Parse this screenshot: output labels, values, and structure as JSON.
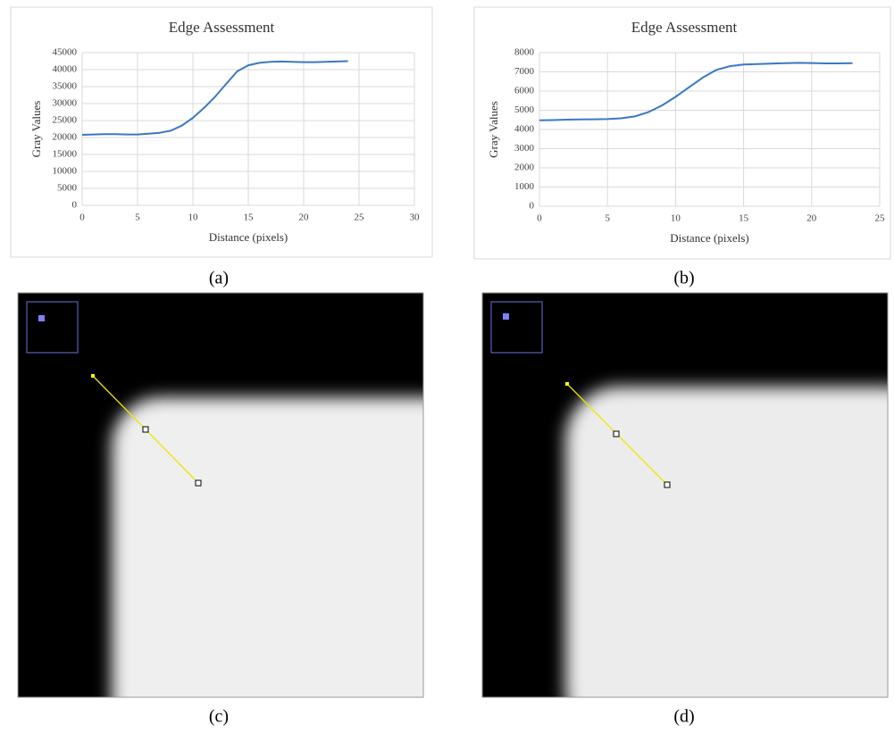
{
  "chart_data": [
    {
      "type": "line",
      "title": "Edge Assessment",
      "xlabel": "Distance (pixels)",
      "ylabel": "Gray Values",
      "x": [
        0,
        1,
        2,
        3,
        4,
        5,
        6,
        7,
        8,
        9,
        10,
        11,
        12,
        13,
        14,
        15,
        16,
        17,
        18,
        19,
        20,
        21,
        22,
        23,
        24
      ],
      "values": [
        20800,
        20900,
        21000,
        21000,
        20900,
        20900,
        21100,
        21400,
        22000,
        23500,
        25800,
        28700,
        32000,
        35800,
        39500,
        41300,
        42000,
        42300,
        42400,
        42300,
        42200,
        42200,
        42300,
        42400,
        42500
      ],
      "color": "#3a78c4",
      "xlim": [
        0,
        30
      ],
      "xticks": [
        0,
        5,
        10,
        15,
        20,
        25,
        30
      ],
      "ylim": [
        0,
        45000
      ],
      "yticks": [
        0,
        5000,
        10000,
        15000,
        20000,
        25000,
        30000,
        35000,
        40000,
        45000
      ],
      "grid": true
    },
    {
      "type": "line",
      "title": "Edge Assessment",
      "xlabel": "Distance (pixels)",
      "ylabel": "Gray Values",
      "x": [
        0,
        1,
        2,
        3,
        4,
        5,
        6,
        7,
        8,
        9,
        10,
        11,
        12,
        13,
        14,
        15,
        16,
        17,
        18,
        19,
        20,
        21,
        22,
        23
      ],
      "values": [
        4480,
        4490,
        4510,
        4520,
        4530,
        4540,
        4580,
        4680,
        4900,
        5250,
        5700,
        6200,
        6700,
        7100,
        7300,
        7380,
        7410,
        7430,
        7450,
        7470,
        7460,
        7440,
        7440,
        7450
      ],
      "color": "#3a78c4",
      "xlim": [
        0,
        25
      ],
      "xticks": [
        0,
        5,
        10,
        15,
        20,
        25
      ],
      "ylim": [
        0,
        8000
      ],
      "yticks": [
        0,
        1000,
        2000,
        3000,
        4000,
        5000,
        6000,
        7000,
        8000
      ],
      "grid": true
    }
  ],
  "panel_labels": [
    "(a)",
    "(b)",
    "(c)",
    "(d)"
  ]
}
